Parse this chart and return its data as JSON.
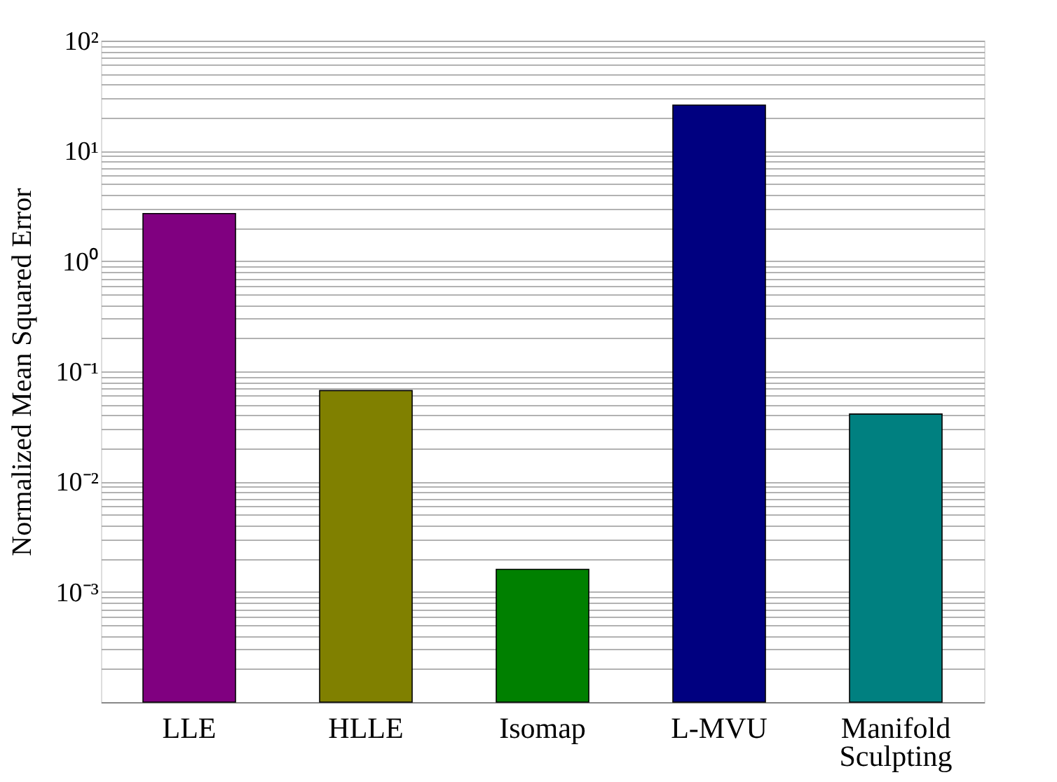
{
  "chart_data": {
    "type": "bar",
    "ylabel": "Normalized Mean Squared Error",
    "categories": [
      "LLE",
      "HLLE",
      "Isomap",
      "L-MVU",
      "Manifold Sculpting"
    ],
    "values": [
      2.7,
      0.067,
      0.0016,
      26,
      0.041
    ],
    "colors": [
      "#800080",
      "#808000",
      "#008000",
      "#000080",
      "#008080"
    ],
    "log": true,
    "grid": "y",
    "ylim": [
      0.0001,
      100
    ],
    "yticks": [
      {
        "value": 0.001,
        "label": "10⁻³"
      },
      {
        "value": 0.01,
        "label": "10⁻²"
      },
      {
        "value": 0.1,
        "label": "10⁻¹"
      },
      {
        "value": 1,
        "label": "10⁰"
      },
      {
        "value": 10,
        "label": "10¹"
      },
      {
        "value": 100,
        "label": "10²"
      },
      {
        "value": 0.0002,
        "label": null
      },
      {
        "value": 0.0003,
        "label": null
      },
      {
        "value": 0.0004,
        "label": null
      },
      {
        "value": 0.0005,
        "label": null
      },
      {
        "value": 0.0006,
        "label": null
      },
      {
        "value": 0.0007,
        "label": null
      },
      {
        "value": 0.0008,
        "label": null
      },
      {
        "value": 0.0009,
        "label": null
      },
      {
        "value": 0.002,
        "label": null
      },
      {
        "value": 0.003,
        "label": null
      },
      {
        "value": 0.004,
        "label": null
      },
      {
        "value": 0.005,
        "label": null
      },
      {
        "value": 0.006,
        "label": null
      },
      {
        "value": 0.007,
        "label": null
      },
      {
        "value": 0.008,
        "label": null
      },
      {
        "value": 0.009,
        "label": null
      },
      {
        "value": 0.02,
        "label": null
      },
      {
        "value": 0.03,
        "label": null
      },
      {
        "value": 0.04,
        "label": null
      },
      {
        "value": 0.05,
        "label": null
      },
      {
        "value": 0.06,
        "label": null
      },
      {
        "value": 0.07,
        "label": null
      },
      {
        "value": 0.08,
        "label": null
      },
      {
        "value": 0.09,
        "label": null
      },
      {
        "value": 0.2,
        "label": null
      },
      {
        "value": 0.3,
        "label": null
      },
      {
        "value": 0.4,
        "label": null
      },
      {
        "value": 0.5,
        "label": null
      },
      {
        "value": 0.6,
        "label": null
      },
      {
        "value": 0.7,
        "label": null
      },
      {
        "value": 0.8,
        "label": null
      },
      {
        "value": 0.9,
        "label": null
      },
      {
        "value": 2,
        "label": null
      },
      {
        "value": 3,
        "label": null
      },
      {
        "value": 4,
        "label": null
      },
      {
        "value": 5,
        "label": null
      },
      {
        "value": 6,
        "label": null
      },
      {
        "value": 7,
        "label": null
      },
      {
        "value": 8,
        "label": null
      },
      {
        "value": 9,
        "label": null
      },
      {
        "value": 20,
        "label": null
      },
      {
        "value": 30,
        "label": null
      },
      {
        "value": 40,
        "label": null
      },
      {
        "value": 50,
        "label": null
      },
      {
        "value": 60,
        "label": null
      },
      {
        "value": 70,
        "label": null
      },
      {
        "value": 80,
        "label": null
      },
      {
        "value": 90,
        "label": null
      }
    ]
  }
}
